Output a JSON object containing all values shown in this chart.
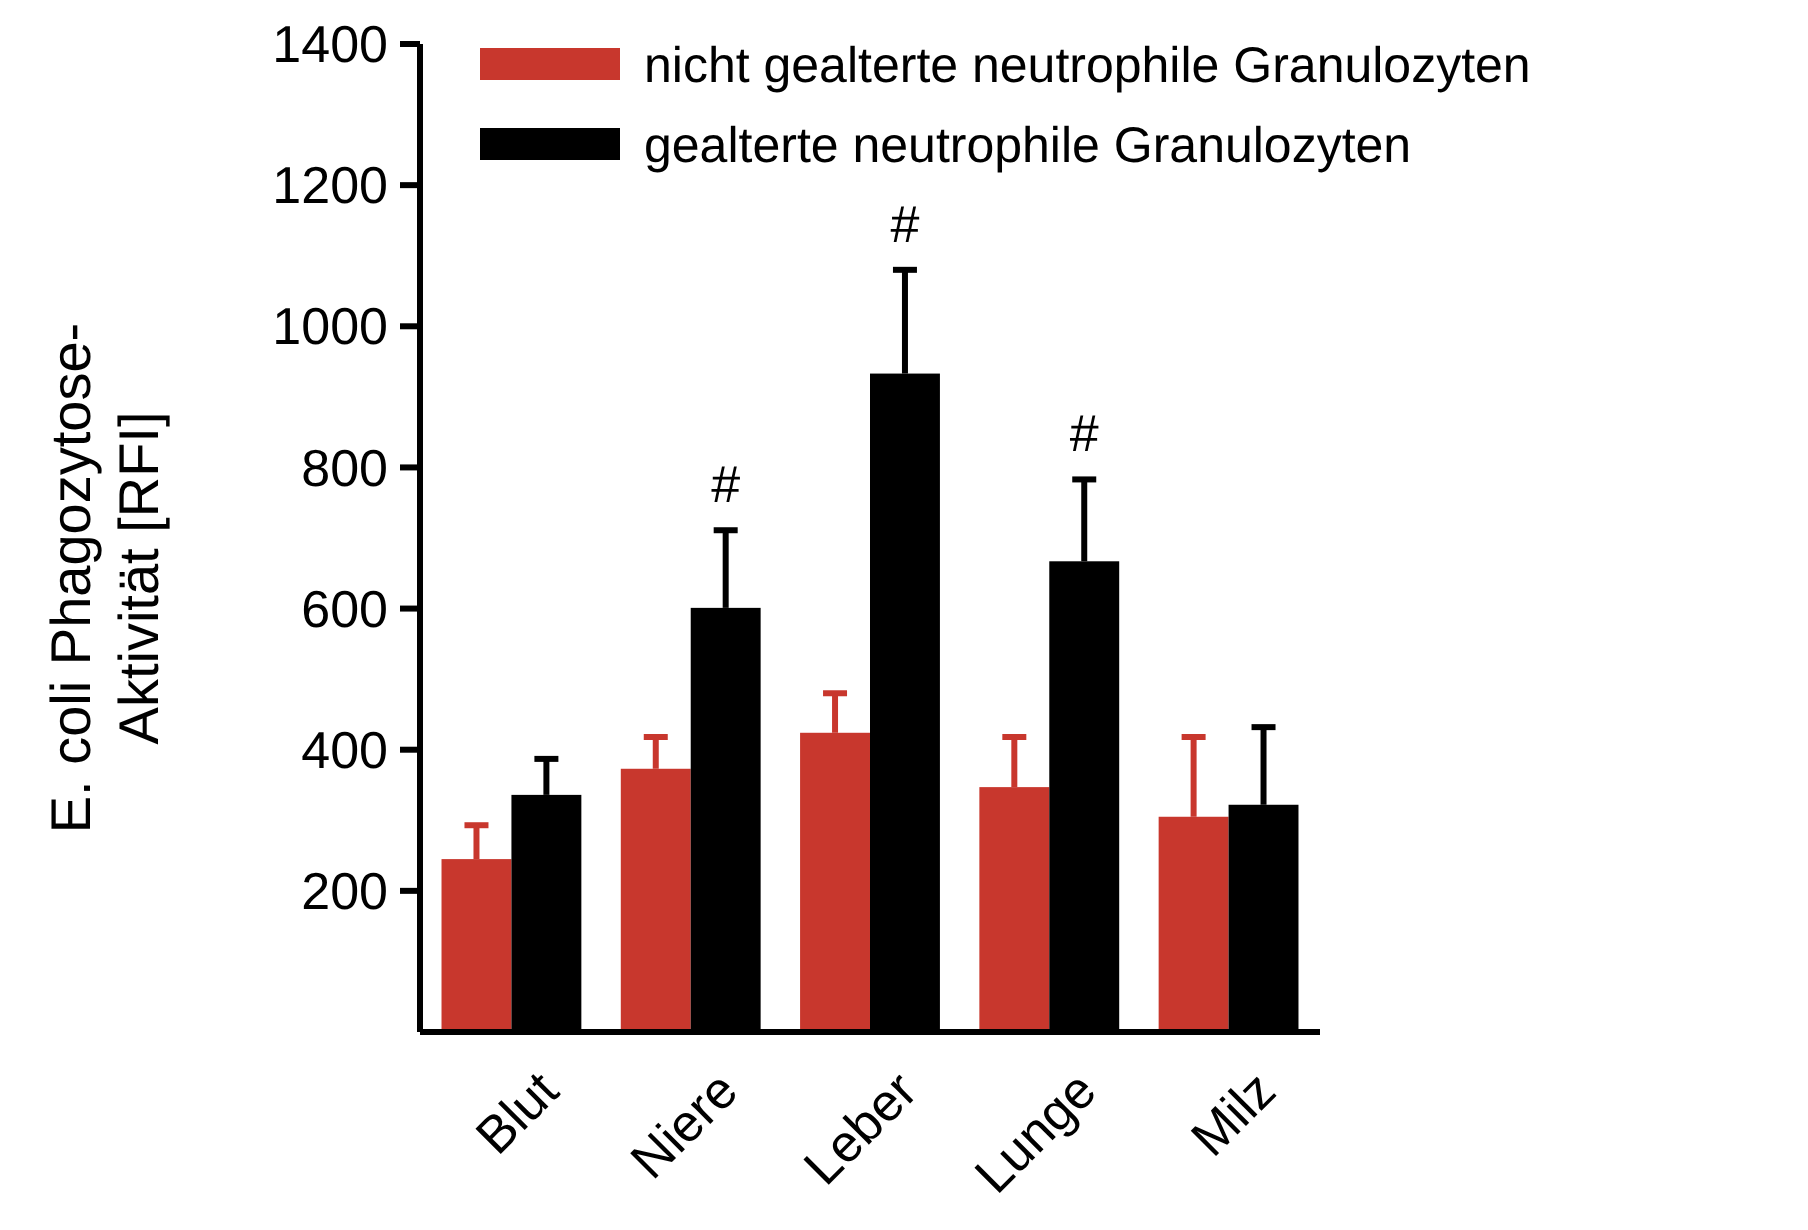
{
  "chart_data": {
    "type": "bar",
    "ylabel": "E. coli Phagozytose-\nAktivität [RFI]",
    "categories": [
      "Blut",
      "Niere",
      "Leber",
      "Lunge",
      "Milz"
    ],
    "series": [
      {
        "name": "nicht gealterte neutrophile Granulozyten",
        "color": "#c8372d",
        "values": [
          245,
          373,
          424,
          347,
          305
        ],
        "errors": [
          [
            245,
            293
          ],
          [
            373,
            418
          ],
          [
            424,
            480
          ],
          [
            347,
            418
          ],
          [
            305,
            418
          ]
        ]
      },
      {
        "name": "gealterte neutrophile Granulozyten",
        "color": "#000000",
        "values": [
          336,
          601,
          933,
          667,
          322
        ],
        "errors": [
          [
            336,
            387
          ],
          [
            601,
            711
          ],
          [
            933,
            1080
          ],
          [
            667,
            783
          ],
          [
            322,
            432
          ]
        ]
      }
    ],
    "ylim": [
      0,
      1400
    ],
    "yticks": [
      200,
      400,
      600,
      800,
      1000,
      1200,
      1400
    ],
    "grid": false,
    "legend": "top",
    "annotations": [
      {
        "text": "#",
        "x": "Niere",
        "y": 711
      },
      {
        "text": "#",
        "x": "Leber",
        "y": 1080
      },
      {
        "text": "#",
        "x": "Lunge",
        "y": 783
      }
    ]
  }
}
